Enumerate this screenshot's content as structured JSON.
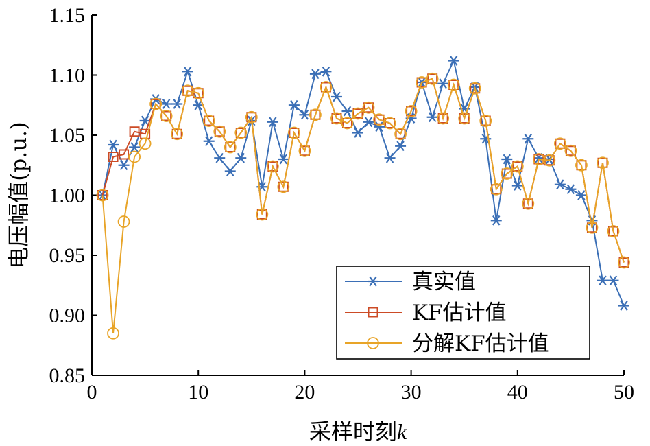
{
  "chart_data": {
    "type": "line",
    "xlabel_main": "采样时刻",
    "xlabel_var": "k",
    "ylabel": "电压幅值(p.u.)",
    "xlim": [
      0,
      50
    ],
    "ylim": [
      0.85,
      1.15
    ],
    "xticks": [
      0,
      10,
      20,
      30,
      40,
      50
    ],
    "xtick_labels": [
      "0",
      "10",
      "20",
      "30",
      "40",
      "50"
    ],
    "yticks": [
      0.85,
      0.9,
      0.95,
      1.0,
      1.05,
      1.1,
      1.15
    ],
    "ytick_labels": [
      "0.85",
      "0.90",
      "0.95",
      "1.00",
      "1.05",
      "1.10",
      "1.15"
    ],
    "grid": false,
    "legend_position": "bottom-right",
    "x": [
      1,
      2,
      3,
      4,
      5,
      6,
      7,
      8,
      9,
      10,
      11,
      12,
      13,
      14,
      15,
      16,
      17,
      18,
      19,
      20,
      21,
      22,
      23,
      24,
      25,
      26,
      27,
      28,
      29,
      30,
      31,
      32,
      33,
      34,
      35,
      36,
      37,
      38,
      39,
      40,
      41,
      42,
      43,
      44,
      45,
      46,
      47,
      48,
      49,
      50
    ],
    "series": [
      {
        "name": "真实值",
        "color": "#3b6fb6",
        "marker": "asterisk",
        "values": [
          1.0,
          1.042,
          1.025,
          1.04,
          1.062,
          1.08,
          1.076,
          1.076,
          1.103,
          1.075,
          1.045,
          1.031,
          1.02,
          1.031,
          1.062,
          1.007,
          1.061,
          1.03,
          1.075,
          1.067,
          1.101,
          1.103,
          1.082,
          1.07,
          1.052,
          1.061,
          1.057,
          1.031,
          1.041,
          1.064,
          1.094,
          1.065,
          1.093,
          1.112,
          1.072,
          1.09,
          1.047,
          0.979,
          1.03,
          1.008,
          1.047,
          1.031,
          1.03,
          1.009,
          1.005,
          1.0,
          0.979,
          0.929,
          0.929,
          0.908
        ]
      },
      {
        "name": "KF估计值",
        "color": "#cc4b26",
        "marker": "square",
        "values": [
          1.0,
          1.032,
          1.034,
          1.053,
          1.051,
          1.076,
          1.066,
          1.051,
          1.087,
          1.085,
          1.062,
          1.053,
          1.04,
          1.052,
          1.065,
          0.984,
          1.024,
          1.007,
          1.052,
          1.037,
          1.067,
          1.09,
          1.064,
          1.06,
          1.068,
          1.073,
          1.063,
          1.06,
          1.051,
          1.07,
          1.094,
          1.097,
          1.064,
          1.092,
          1.064,
          1.089,
          1.062,
          1.005,
          1.018,
          1.024,
          0.993,
          1.03,
          1.029,
          1.043,
          1.037,
          1.025,
          0.973,
          1.027,
          0.97,
          0.944
        ]
      },
      {
        "name": "分解KF估计值",
        "color": "#e8a428",
        "marker": "circle",
        "values": [
          1.0,
          0.885,
          0.978,
          1.032,
          1.043,
          1.076,
          1.066,
          1.051,
          1.087,
          1.085,
          1.062,
          1.053,
          1.04,
          1.052,
          1.065,
          0.984,
          1.024,
          1.007,
          1.052,
          1.037,
          1.067,
          1.09,
          1.064,
          1.06,
          1.068,
          1.073,
          1.063,
          1.06,
          1.051,
          1.07,
          1.094,
          1.097,
          1.064,
          1.092,
          1.064,
          1.089,
          1.062,
          1.005,
          1.018,
          1.024,
          0.993,
          1.03,
          1.029,
          1.043,
          1.037,
          1.025,
          0.973,
          1.027,
          0.97,
          0.944
        ]
      }
    ]
  }
}
